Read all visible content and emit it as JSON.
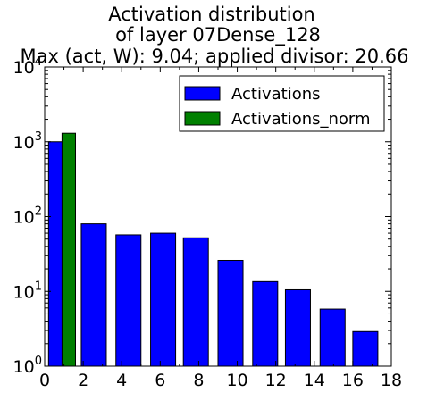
{
  "chart_data": {
    "type": "bar",
    "title": [
      "Activation distribution",
      "of layer 07Dense_128",
      "Max (act, W): 9.04; applied divisor: 20.66"
    ],
    "xlabel": "",
    "ylabel": "",
    "x_scale": "linear",
    "y_scale": "log",
    "xlim": [
      0,
      18
    ],
    "ylim": [
      1,
      10000
    ],
    "x_ticks": [
      0,
      2,
      4,
      6,
      8,
      10,
      12,
      14,
      16,
      18
    ],
    "y_ticks": [
      {
        "value": 1,
        "base": "10",
        "exp": "0"
      },
      {
        "value": 10,
        "base": "10",
        "exp": "1"
      },
      {
        "value": 100,
        "base": "10",
        "exp": "2"
      },
      {
        "value": 1000,
        "base": "10",
        "exp": "3"
      },
      {
        "value": 10000,
        "base": "10",
        "exp": "4"
      }
    ],
    "grid": false,
    "legend_position": "top-right",
    "series": [
      {
        "name": "Activations",
        "color": "#0000ff",
        "bars": [
          {
            "x_start": 0.2,
            "x_end": 1.5,
            "value": 1000
          },
          {
            "x_start": 1.9,
            "x_end": 3.2,
            "value": 80
          },
          {
            "x_start": 3.7,
            "x_end": 5.0,
            "value": 57
          },
          {
            "x_start": 5.5,
            "x_end": 6.8,
            "value": 60
          },
          {
            "x_start": 7.2,
            "x_end": 8.5,
            "value": 52
          },
          {
            "x_start": 9.0,
            "x_end": 10.3,
            "value": 26
          },
          {
            "x_start": 10.8,
            "x_end": 12.1,
            "value": 13.5
          },
          {
            "x_start": 12.5,
            "x_end": 13.8,
            "value": 10.5
          },
          {
            "x_start": 14.3,
            "x_end": 15.6,
            "value": 5.8
          },
          {
            "x_start": 16.0,
            "x_end": 17.3,
            "value": 2.9
          }
        ]
      },
      {
        "name": "Activations_norm",
        "color": "#008000",
        "bars": [
          {
            "x_start": 0.9,
            "x_end": 1.6,
            "value": 1300
          }
        ]
      }
    ]
  }
}
